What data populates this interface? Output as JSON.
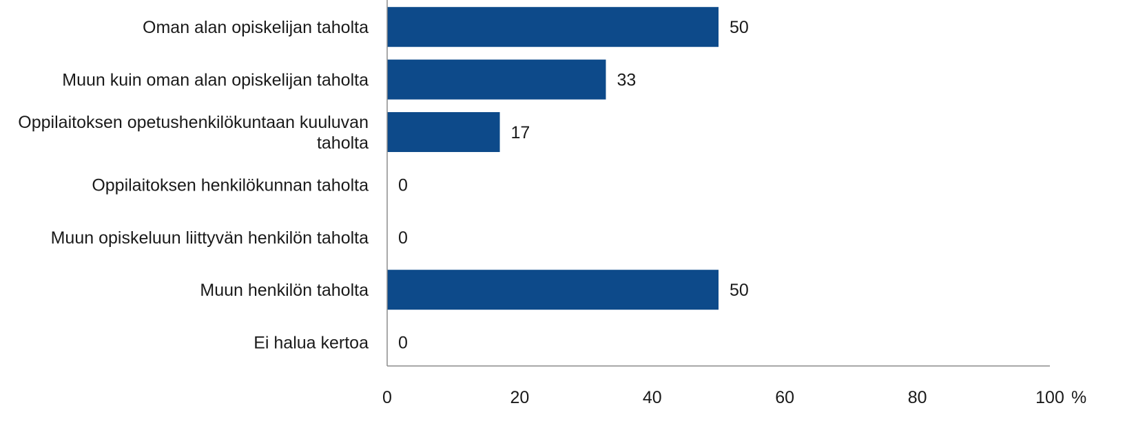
{
  "chart_data": {
    "type": "bar",
    "orientation": "horizontal",
    "categories": [
      [
        "Oman alan opiskelijan taholta"
      ],
      [
        "Muun kuin oman alan opiskelijan taholta"
      ],
      [
        "Oppilaitoksen opetushenkilökuntaan kuuluvan",
        "taholta"
      ],
      [
        "Oppilaitoksen henkilökunnan taholta"
      ],
      [
        "Muun opiskeluun liittyvän henkilön taholta"
      ],
      [
        "Muun henkilön taholta"
      ],
      [
        "Ei halua kertoa"
      ]
    ],
    "values": [
      50,
      33,
      17,
      0,
      0,
      50,
      0
    ],
    "value_labels": [
      "50",
      "33",
      "17",
      "0",
      "0",
      "50",
      "0"
    ],
    "xlim": [
      0,
      100
    ],
    "x_ticks": [
      "0",
      "20",
      "40",
      "60",
      "80",
      "100"
    ],
    "x_unit": "%",
    "grid": false,
    "legend": "none",
    "bar_color": "#0d4a8a"
  }
}
